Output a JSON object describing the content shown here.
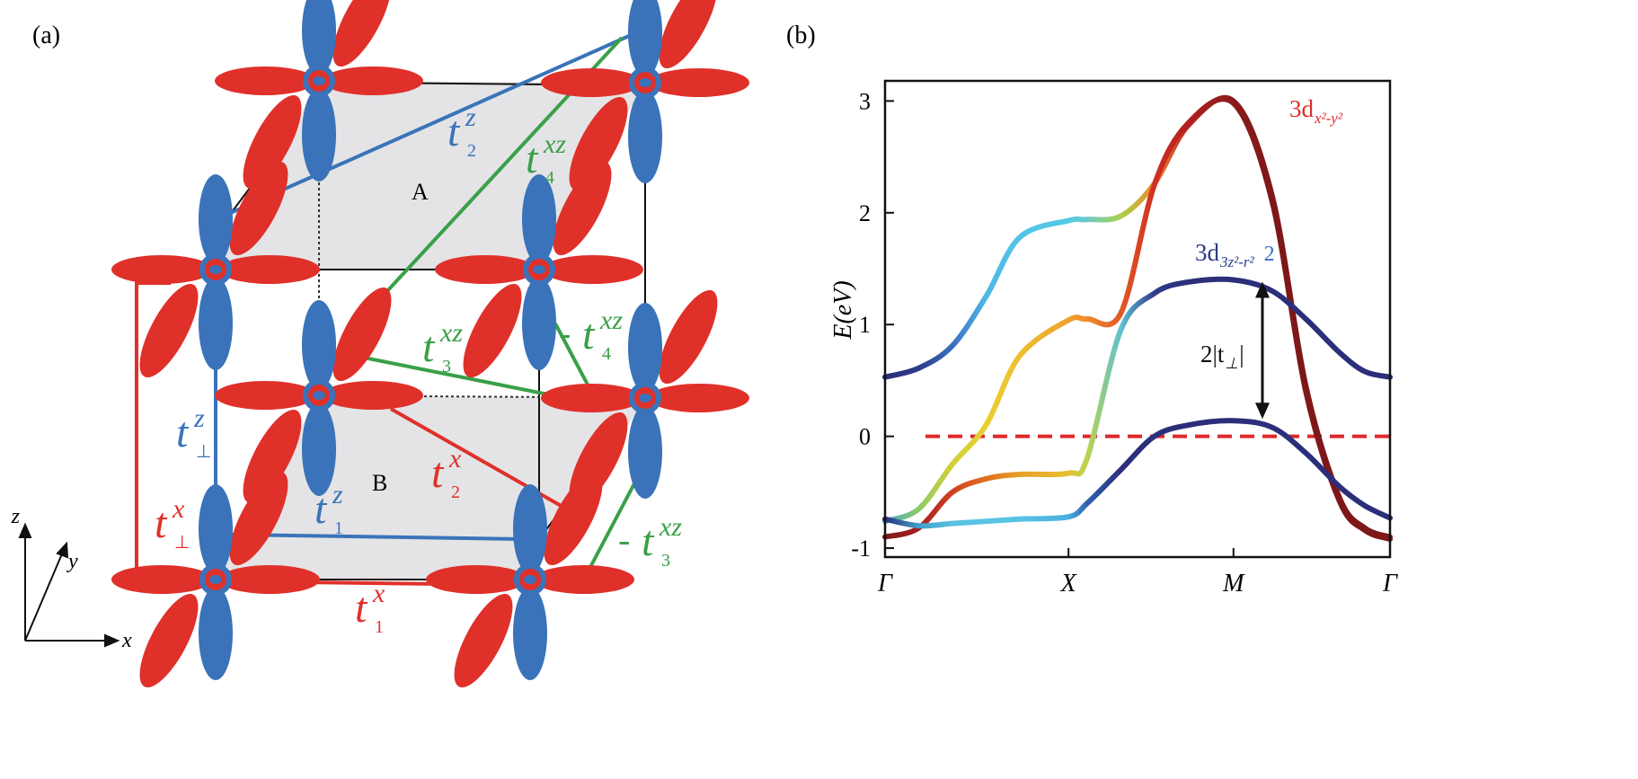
{
  "panel_labels": [
    "(a)",
    "(b)"
  ],
  "diagram": {
    "plane_labels": [
      "A",
      "B"
    ],
    "axis_labels": [
      "z",
      "y",
      "x"
    ],
    "hopping_labels": [
      {
        "symbol": "t",
        "sup": "z",
        "sub": "2",
        "color": "#3a73b9"
      },
      {
        "symbol": "t",
        "sup": "xz",
        "sub": "4",
        "color": "#3aa048"
      },
      {
        "symbol": "t",
        "sup": "z",
        "sub": "⊥",
        "color": "#3a73b9"
      },
      {
        "symbol": "t",
        "sup": "z",
        "sub": "1",
        "color": "#3a73b9"
      },
      {
        "symbol": "t",
        "sup": "x",
        "sub": "2",
        "color": "#e0302a"
      },
      {
        "symbol": "t",
        "sup": "x",
        "sub": "⊥",
        "color": "#e0302a"
      },
      {
        "symbol": "t",
        "sup": "x",
        "sub": "1",
        "color": "#e0302a"
      },
      {
        "symbol": "t",
        "sup": "xz",
        "sub": "3",
        "color": "#3aa048"
      },
      {
        "prefix": "-",
        "symbol": "t",
        "sup": "xz",
        "sub": "4",
        "color": "#3aa048"
      },
      {
        "prefix": "-",
        "symbol": "t",
        "sup": "xz",
        "sub": "3",
        "color": "#3aa048"
      }
    ]
  },
  "chart_data": {
    "type": "line",
    "y_label": "E(eV)",
    "x": [
      0,
      0.2,
      0.4,
      0.6,
      0.8,
      1.09,
      1.2,
      1.4,
      1.6,
      1.8,
      2.07,
      2.3,
      2.5,
      2.7,
      2.85,
      3
    ],
    "xlim": [
      0,
      3
    ],
    "xticks": [
      {
        "value": 0,
        "label": "Γ"
      },
      {
        "value": 1.09,
        "label": "X"
      },
      {
        "value": 2.07,
        "label": "M"
      },
      {
        "value": 3,
        "label": "Γ"
      }
    ],
    "ylim": [
      -1.08,
      3.18
    ],
    "yticks": [
      -1,
      0,
      1,
      2,
      3
    ],
    "series": [
      {
        "values": [
          0.53,
          0.61,
          0.81,
          1.25,
          1.78,
          1.93,
          1.94,
          1.97,
          2.26,
          2.78,
          3.0,
          2.15,
          0.45,
          -0.55,
          -0.82,
          -0.9
        ],
        "colors": [
          "#2b2f7a",
          "#2e3c8a",
          "#3a6fc0",
          "#4fb8e6",
          "#52c4e6",
          "#52c8e4",
          "#6ccac8",
          "#a8d24a",
          "#f08a2e",
          "#c42222",
          "#8b1a1a",
          "#7e1818",
          "#7e1818",
          "#7e1818",
          "#7e1818",
          "#7e1818"
        ]
      },
      {
        "values": [
          -0.76,
          -0.65,
          -0.25,
          0.1,
          0.72,
          1.04,
          1.05,
          1.1,
          2.25,
          2.8,
          2.98,
          2.1,
          0.4,
          -0.58,
          -0.84,
          -0.92
        ],
        "colors": [
          "#4aa8c8",
          "#8ccc6a",
          "#d4d03a",
          "#e8d030",
          "#ecc030",
          "#f0a030",
          "#f08a2e",
          "#e05a26",
          "#d03020",
          "#b02020",
          "#8b1a1a",
          "#7e1818",
          "#7e1818",
          "#7e1818",
          "#7e1818",
          "#7e1818"
        ]
      },
      {
        "values": [
          -0.9,
          -0.82,
          -0.5,
          -0.38,
          -0.34,
          -0.33,
          -0.2,
          0.95,
          1.28,
          1.38,
          1.4,
          1.3,
          1.05,
          0.75,
          0.58,
          0.53
        ],
        "colors": [
          "#7e1818",
          "#a82020",
          "#d04020",
          "#e07020",
          "#e8a028",
          "#e6c032",
          "#b8d450",
          "#60c0d0",
          "#2e3c8a",
          "#2b2f7a",
          "#2b2f7a",
          "#2b2f7a",
          "#2b2f7a",
          "#2b2f7a",
          "#2b2f7a",
          "#2b2f7a"
        ]
      },
      {
        "values": [
          -0.74,
          -0.8,
          -0.78,
          -0.76,
          -0.74,
          -0.72,
          -0.6,
          -0.3,
          0.0,
          0.1,
          0.14,
          0.08,
          -0.15,
          -0.45,
          -0.62,
          -0.73
        ],
        "colors": [
          "#2b2f7a",
          "#40a0c8",
          "#5ac0e0",
          "#5ac4e4",
          "#58c2e4",
          "#4ab0e0",
          "#3060b0",
          "#2b2f7a",
          "#2b2f7a",
          "#2b2f7a",
          "#2b2f7a",
          "#2b2f7a",
          "#2b2f7a",
          "#2b2f7a",
          "#2b2f7a",
          "#2b2f7a"
        ]
      }
    ],
    "reference_line": {
      "value": 0,
      "color": "#e0282a"
    },
    "annotations": [
      {
        "text": "3d",
        "sub": "x²-y²",
        "color": "#d8302a"
      },
      {
        "text": "3d",
        "sub": "3z²-r²",
        "extra": "2",
        "color": "#2b3a8a"
      },
      {
        "text": "2|t",
        "sub": "⊥",
        "tail": "|",
        "color": "#111111"
      }
    ]
  }
}
